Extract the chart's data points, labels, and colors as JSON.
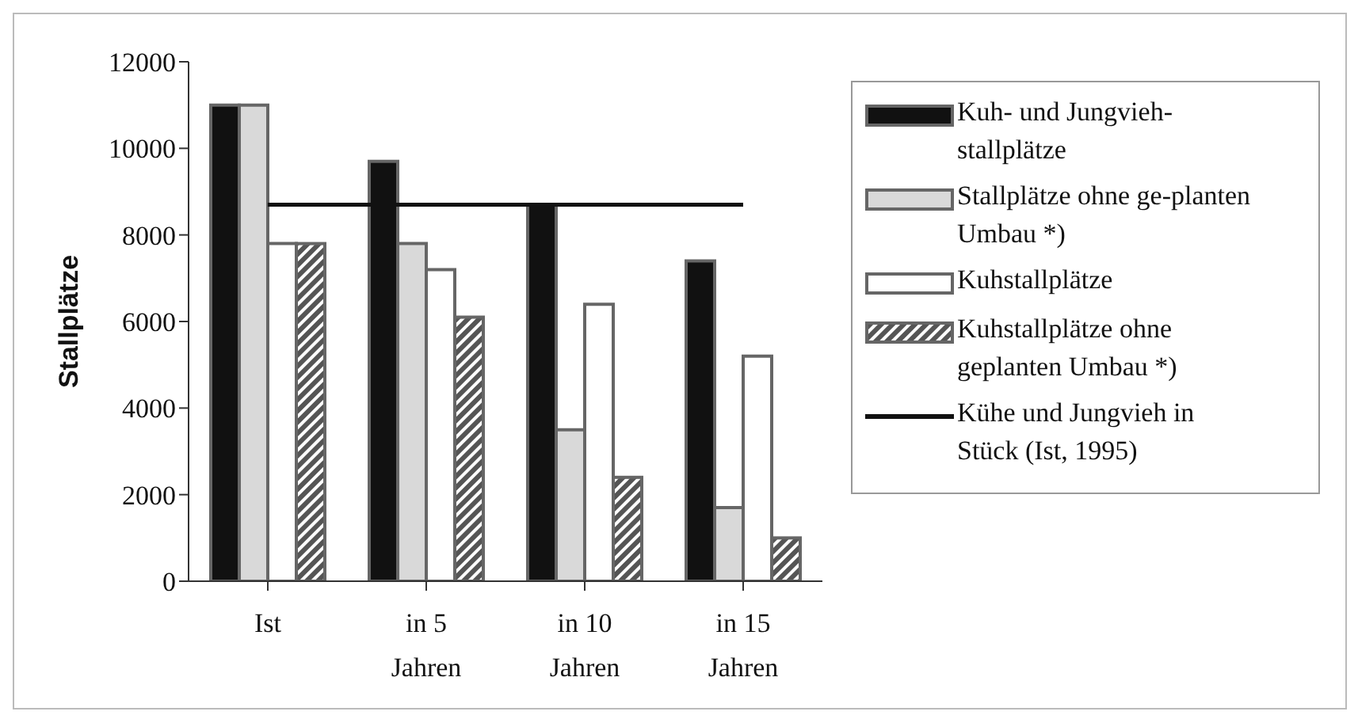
{
  "chart_data": {
    "type": "bar",
    "ylabel": "Stallplätze",
    "categories": [
      "Ist",
      "in 5 Jahren",
      "in 10 Jahren",
      "in 15 Jahren"
    ],
    "series": [
      {
        "name": "Kuh- und Jungvieh-stallplätze",
        "color": "#111111",
        "values": [
          11000,
          9700,
          8700,
          7400
        ]
      },
      {
        "name": "Stallplätze ohne ge-planten Umbau *)",
        "color": "#d9d9d9",
        "values": [
          11000,
          7800,
          3500,
          1700
        ]
      },
      {
        "name": "Kuhstallplätze",
        "color": "#ffffff",
        "values": [
          7800,
          7200,
          6400,
          5200
        ]
      },
      {
        "name": "Kuhstallplätze ohne geplanten Umbau *)",
        "color": "#555555",
        "values": [
          7800,
          6100,
          2400,
          1000
        ]
      },
      {
        "name": "Kühe und Jungvieh in Stück (Ist, 1995)",
        "type": "line",
        "color": "#111111",
        "values": [
          8700,
          8700,
          8700,
          8700
        ]
      }
    ],
    "ylim": [
      0,
      12000
    ],
    "yticks": [
      0,
      2000,
      4000,
      6000,
      8000,
      10000,
      12000
    ],
    "grid": false,
    "legend": "right",
    "marker": "none",
    "line_style": "solid"
  }
}
